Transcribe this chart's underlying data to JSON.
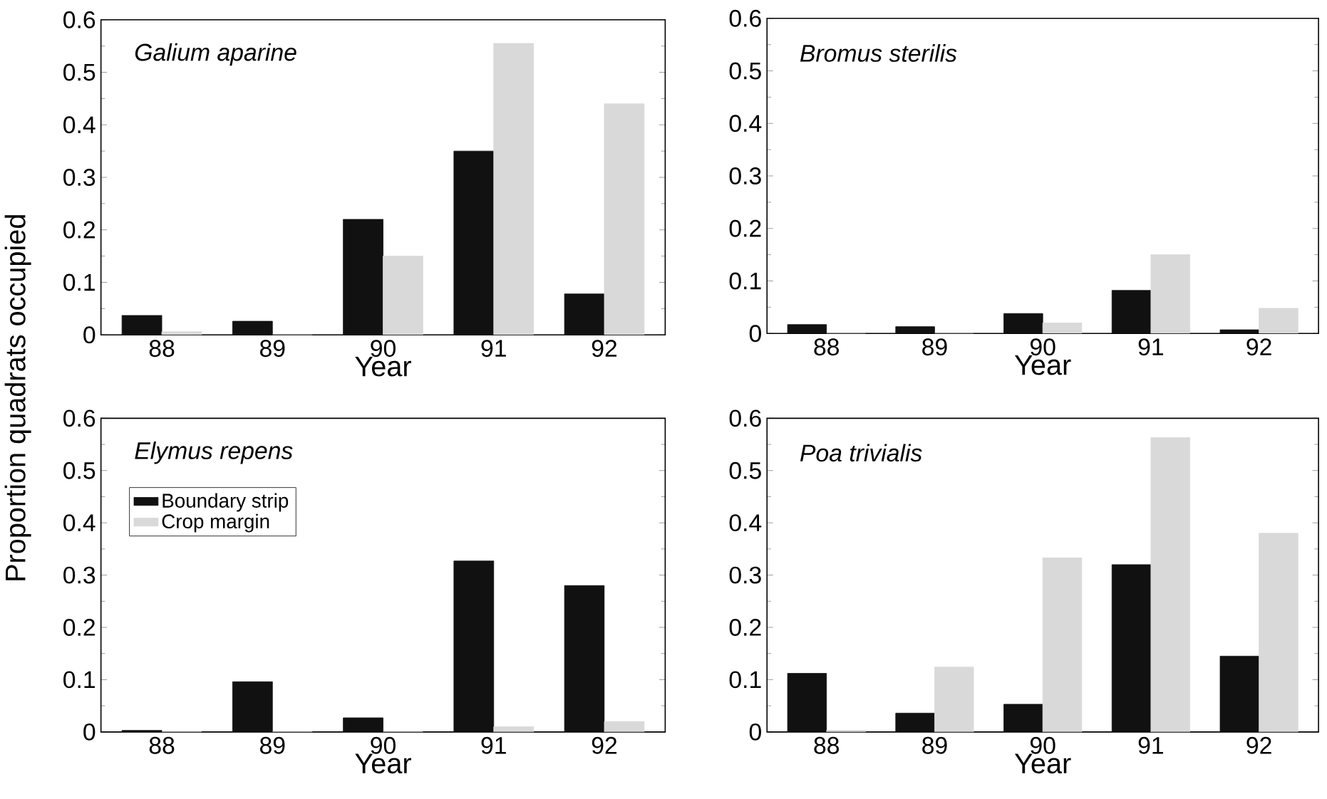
{
  "chart_data": [
    {
      "type": "bar",
      "title": "Galium aparine",
      "xlabel": "Year",
      "ylabel": "Proportion quadrats occupied",
      "categories": [
        "88",
        "89",
        "90",
        "91",
        "92"
      ],
      "ylim": [
        0,
        0.6
      ],
      "yticks": [
        0,
        0.1,
        0.2,
        0.3,
        0.4,
        0.5,
        0.6
      ],
      "series": [
        {
          "color": "#111111",
          "values": [
            0.037,
            0.026,
            0.22,
            0.35,
            0.078
          ]
        },
        {
          "color": "#d9d9d9",
          "values": [
            0.006,
            0,
            0.15,
            0.555,
            0.44
          ]
        }
      ]
    },
    {
      "type": "bar",
      "title": "Bromus sterilis",
      "xlabel": "Year",
      "categories": [
        "88",
        "89",
        "90",
        "91",
        "92"
      ],
      "ylim": [
        0,
        0.6
      ],
      "yticks": [
        0,
        0.1,
        0.2,
        0.3,
        0.4,
        0.5,
        0.6
      ],
      "series": [
        {
          "color": "#111111",
          "values": [
            0.017,
            0.013,
            0.038,
            0.082,
            0.007
          ]
        },
        {
          "color": "#d9d9d9",
          "values": [
            0,
            0,
            0.02,
            0.15,
            0.048
          ]
        }
      ]
    },
    {
      "type": "bar",
      "title": "Elymus repens",
      "xlabel": "Year",
      "categories": [
        "88",
        "89",
        "90",
        "91",
        "92"
      ],
      "ylim": [
        0,
        0.6
      ],
      "yticks": [
        0,
        0.1,
        0.2,
        0.3,
        0.4,
        0.5,
        0.6
      ],
      "legend": "top left",
      "series": [
        {
          "name": "Boundary strip",
          "color": "#111111",
          "values": [
            0.003,
            0.096,
            0.027,
            0.327,
            0.28
          ]
        },
        {
          "name": "Crop margin",
          "color": "#d9d9d9",
          "values": [
            0,
            0,
            0,
            0.01,
            0.02
          ]
        }
      ]
    },
    {
      "type": "bar",
      "title": "Poa trivialis",
      "xlabel": "Year",
      "categories": [
        "88",
        "89",
        "90",
        "91",
        "92"
      ],
      "ylim": [
        0,
        0.6
      ],
      "yticks": [
        0,
        0.1,
        0.2,
        0.3,
        0.4,
        0.5,
        0.6
      ],
      "series": [
        {
          "color": "#111111",
          "values": [
            0.112,
            0.036,
            0.053,
            0.32,
            0.145
          ]
        },
        {
          "color": "#d9d9d9",
          "values": [
            0.003,
            0.124,
            0.333,
            0.563,
            0.38
          ]
        }
      ]
    }
  ]
}
